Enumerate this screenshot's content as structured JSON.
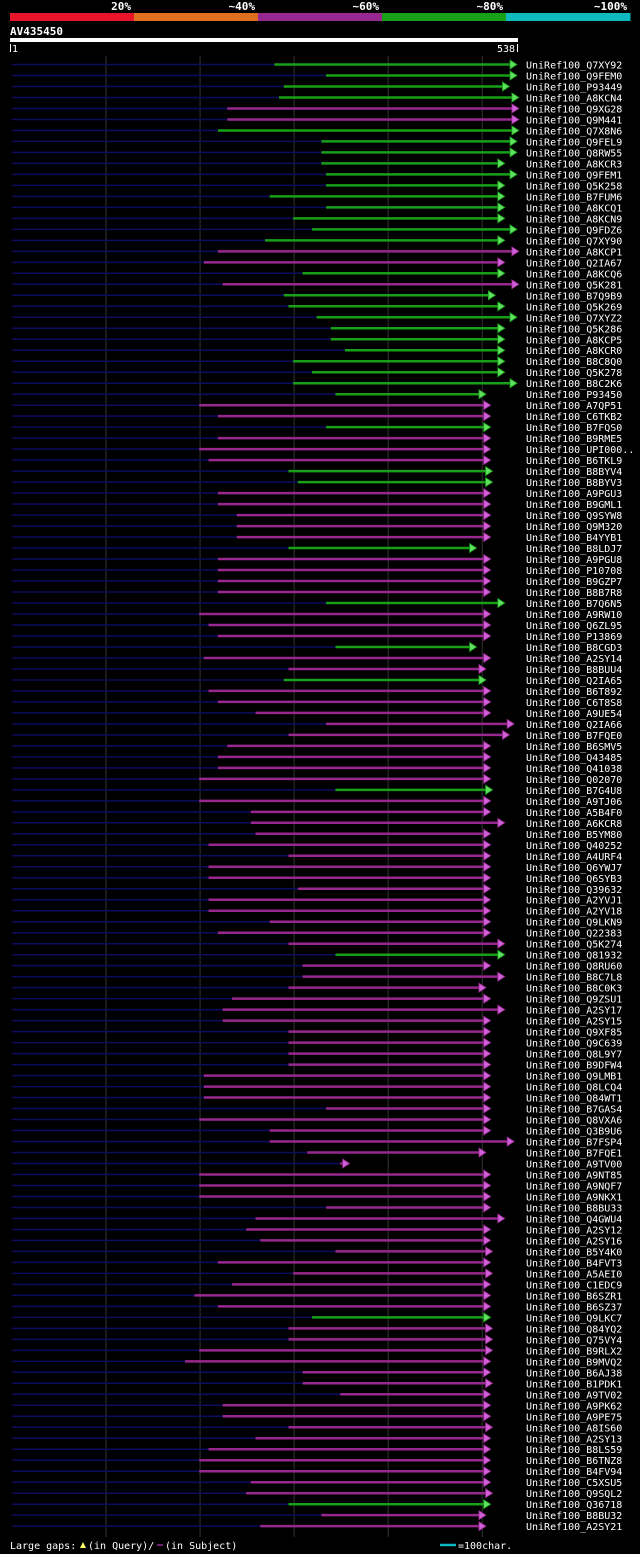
{
  "query": {
    "id": "AV435450",
    "start": "1",
    "end": "538",
    "length": 538
  },
  "identity_legend": [
    {
      "label": "20%",
      "color": "#e8142a"
    },
    {
      "label": "~40%",
      "color": "#e07020"
    },
    {
      "label": "~60%",
      "color": "#982890"
    },
    {
      "label": "~80%",
      "color": "#18a018"
    },
    {
      "label": "~100%",
      "color": "#10b8c0"
    }
  ],
  "colors": {
    "magenta": "#982890",
    "magenta_head": "#d060d8",
    "green": "#18a018",
    "green_head": "#60e060",
    "navy": "#0c0c60",
    "gridline": "#333333",
    "triangle": "#ffff66",
    "label": "#ffffff"
  },
  "footer": {
    "gaps_label": "Large gaps:",
    "query_label": "(in Query)/",
    "subject_label": "(in Subject)",
    "scale_label": "=100char."
  },
  "hits": [
    {
      "id": "UniRef100_Q7XY92",
      "start": 280,
      "end": 538,
      "color": "green"
    },
    {
      "id": "UniRef100_Q9FEM0",
      "start": 335,
      "end": 538,
      "color": "green"
    },
    {
      "id": "UniRef100_P93449",
      "start": 290,
      "end": 530,
      "color": "green"
    },
    {
      "id": "UniRef100_A8KCN4",
      "start": 285,
      "end": 540,
      "color": "green"
    },
    {
      "id": "UniRef100_Q9XG28",
      "start": 230,
      "end": 540,
      "color": "magenta"
    },
    {
      "id": "UniRef100_Q9M441",
      "start": 230,
      "end": 540,
      "color": "magenta"
    },
    {
      "id": "UniRef100_Q7X8N6",
      "start": 220,
      "end": 540,
      "color": "green"
    },
    {
      "id": "UniRef100_Q9FEL9",
      "start": 330,
      "end": 538,
      "color": "green"
    },
    {
      "id": "UniRef100_Q8RW55",
      "start": 330,
      "end": 538,
      "color": "green"
    },
    {
      "id": "UniRef100_A8KCR3",
      "start": 330,
      "end": 525,
      "color": "green"
    },
    {
      "id": "UniRef100_Q9FEM1",
      "start": 335,
      "end": 538,
      "color": "green"
    },
    {
      "id": "UniRef100_Q5K258",
      "start": 335,
      "end": 525,
      "color": "green"
    },
    {
      "id": "UniRef100_B7FUM6",
      "start": 275,
      "end": 525,
      "color": "green"
    },
    {
      "id": "UniRef100_A8KCQ1",
      "start": 335,
      "end": 525,
      "color": "green"
    },
    {
      "id": "UniRef100_A8KCN9",
      "start": 300,
      "end": 525,
      "color": "green"
    },
    {
      "id": "UniRef100_Q9FDZ6",
      "start": 320,
      "end": 538,
      "color": "green"
    },
    {
      "id": "UniRef100_Q7XY90",
      "start": 270,
      "end": 525,
      "color": "green"
    },
    {
      "id": "UniRef100_A8KCP1",
      "start": 220,
      "end": 540,
      "color": "magenta"
    },
    {
      "id": "UniRef100_Q2IA67",
      "start": 205,
      "end": 525,
      "color": "magenta"
    },
    {
      "id": "UniRef100_A8KCQ6",
      "start": 310,
      "end": 525,
      "color": "green"
    },
    {
      "id": "UniRef100_Q5K281",
      "start": 225,
      "end": 540,
      "color": "magenta"
    },
    {
      "id": "UniRef100_B7Q9B9",
      "start": 290,
      "end": 515,
      "color": "green"
    },
    {
      "id": "UniRef100_Q5K269",
      "start": 295,
      "end": 525,
      "color": "green"
    },
    {
      "id": "UniRef100_Q7XYZ2",
      "start": 325,
      "end": 538,
      "color": "green"
    },
    {
      "id": "UniRef100_Q5K286",
      "start": 340,
      "end": 525,
      "color": "green"
    },
    {
      "id": "UniRef100_A8KCP5",
      "start": 340,
      "end": 525,
      "color": "green"
    },
    {
      "id": "UniRef100_A8KCR0",
      "start": 355,
      "end": 525,
      "color": "green"
    },
    {
      "id": "UniRef100_B8C8Q0",
      "start": 300,
      "end": 525,
      "color": "green"
    },
    {
      "id": "UniRef100_Q5K278",
      "start": 320,
      "end": 525,
      "color": "green"
    },
    {
      "id": "UniRef100_B8C2K6",
      "start": 300,
      "end": 538,
      "color": "green"
    },
    {
      "id": "UniRef100_P93450",
      "start": 345,
      "end": 505,
      "color": "green"
    },
    {
      "id": "UniRef100_A7QP51",
      "start": 200,
      "end": 510,
      "color": "magenta"
    },
    {
      "id": "UniRef100_C6TKB2",
      "start": 220,
      "end": 510,
      "color": "magenta"
    },
    {
      "id": "UniRef100_B7FQS0",
      "start": 335,
      "end": 510,
      "color": "green"
    },
    {
      "id": "UniRef100_B9RME5",
      "start": 220,
      "end": 510,
      "color": "magenta"
    },
    {
      "id": "UniRef100_UPI000..",
      "start": 200,
      "end": 510,
      "color": "magenta"
    },
    {
      "id": "UniRef100_B6TKL9",
      "start": 210,
      "end": 510,
      "color": "magenta"
    },
    {
      "id": "UniRef100_B8BYV4",
      "start": 295,
      "end": 512,
      "color": "green"
    },
    {
      "id": "UniRef100_B8BYV3",
      "start": 305,
      "end": 512,
      "color": "green"
    },
    {
      "id": "UniRef100_A9PGU3",
      "start": 220,
      "end": 510,
      "color": "magenta"
    },
    {
      "id": "UniRef100_B9GML1",
      "start": 220,
      "end": 510,
      "color": "magenta"
    },
    {
      "id": "UniRef100_Q9SYW8",
      "start": 240,
      "end": 510,
      "color": "magenta"
    },
    {
      "id": "UniRef100_Q9M320",
      "start": 240,
      "end": 510,
      "color": "magenta"
    },
    {
      "id": "UniRef100_B4YYB1",
      "start": 240,
      "end": 510,
      "color": "magenta"
    },
    {
      "id": "UniRef100_B8LDJ7",
      "start": 295,
      "end": 495,
      "color": "green"
    },
    {
      "id": "UniRef100_A9PGU8",
      "start": 220,
      "end": 510,
      "color": "magenta"
    },
    {
      "id": "UniRef100_P10708",
      "start": 220,
      "end": 510,
      "color": "magenta"
    },
    {
      "id": "UniRef100_B9GZP7",
      "start": 220,
      "end": 510,
      "color": "magenta"
    },
    {
      "id": "UniRef100_B8B7R8",
      "start": 220,
      "end": 510,
      "color": "magenta"
    },
    {
      "id": "UniRef100_B7Q6N5",
      "start": 335,
      "end": 525,
      "color": "green"
    },
    {
      "id": "UniRef100_A9RW10",
      "start": 200,
      "end": 510,
      "color": "magenta"
    },
    {
      "id": "UniRef100_Q6ZL95",
      "start": 210,
      "end": 510,
      "color": "magenta"
    },
    {
      "id": "UniRef100_P13869",
      "start": 220,
      "end": 510,
      "color": "magenta"
    },
    {
      "id": "UniRef100_B8CGD3",
      "start": 345,
      "end": 495,
      "color": "green"
    },
    {
      "id": "UniRef100_A2SY14",
      "start": 205,
      "end": 510,
      "color": "magenta"
    },
    {
      "id": "UniRef100_B8BUU4",
      "start": 295,
      "end": 505,
      "color": "magenta"
    },
    {
      "id": "UniRef100_Q2IA65",
      "start": 290,
      "end": 505,
      "color": "green"
    },
    {
      "id": "UniRef100_B6T892",
      "start": 210,
      "end": 510,
      "color": "magenta"
    },
    {
      "id": "UniRef100_C6T8S8",
      "start": 220,
      "end": 510,
      "color": "magenta"
    },
    {
      "id": "UniRef100_A9UE54",
      "start": 260,
      "end": 510,
      "color": "magenta"
    },
    {
      "id": "UniRef100_Q2IA66",
      "start": 335,
      "end": 535,
      "color": "magenta"
    },
    {
      "id": "UniRef100_B7FQE0",
      "start": 295,
      "end": 530,
      "color": "magenta"
    },
    {
      "id": "UniRef100_B6SMV5",
      "start": 230,
      "end": 510,
      "color": "magenta"
    },
    {
      "id": "UniRef100_Q43485",
      "start": 220,
      "end": 510,
      "color": "magenta"
    },
    {
      "id": "UniRef100_Q41038",
      "start": 220,
      "end": 510,
      "color": "magenta"
    },
    {
      "id": "UniRef100_Q02070",
      "start": 200,
      "end": 510,
      "color": "magenta"
    },
    {
      "id": "UniRef100_B7G4U8",
      "start": 345,
      "end": 512,
      "color": "green"
    },
    {
      "id": "UniRef100_A9TJ06",
      "start": 200,
      "end": 510,
      "color": "magenta"
    },
    {
      "id": "UniRef100_A5B4F0",
      "start": 255,
      "end": 510,
      "color": "magenta"
    },
    {
      "id": "UniRef100_A6KCR8",
      "start": 255,
      "end": 525,
      "color": "magenta"
    },
    {
      "id": "UniRef100_B5YM80",
      "start": 260,
      "end": 510,
      "color": "magenta"
    },
    {
      "id": "UniRef100_Q40252",
      "start": 210,
      "end": 510,
      "color": "magenta"
    },
    {
      "id": "UniRef100_A4URF4",
      "start": 295,
      "end": 510,
      "color": "magenta"
    },
    {
      "id": "UniRef100_Q6YWJ7",
      "start": 210,
      "end": 510,
      "color": "magenta"
    },
    {
      "id": "UniRef100_Q6SYB3",
      "start": 210,
      "end": 510,
      "color": "magenta"
    },
    {
      "id": "UniRef100_Q39632",
      "start": 305,
      "end": 510,
      "color": "magenta"
    },
    {
      "id": "UniRef100_A2YVJ1",
      "start": 210,
      "end": 510,
      "color": "magenta"
    },
    {
      "id": "UniRef100_A2YV18",
      "start": 210,
      "end": 510,
      "color": "magenta"
    },
    {
      "id": "UniRef100_Q9LKN9",
      "start": 275,
      "end": 510,
      "color": "magenta"
    },
    {
      "id": "UniRef100_Q22383",
      "start": 220,
      "end": 510,
      "color": "magenta"
    },
    {
      "id": "UniRef100_Q5K274",
      "start": 295,
      "end": 525,
      "color": "magenta"
    },
    {
      "id": "UniRef100_Q81932",
      "start": 345,
      "end": 525,
      "color": "green"
    },
    {
      "id": "UniRef100_Q8RU60",
      "start": 310,
      "end": 510,
      "color": "magenta"
    },
    {
      "id": "UniRef100_B8C7L8",
      "start": 310,
      "end": 525,
      "color": "magenta"
    },
    {
      "id": "UniRef100_B8C0K3",
      "start": 295,
      "end": 505,
      "color": "magenta"
    },
    {
      "id": "UniRef100_Q9ZSU1",
      "start": 235,
      "end": 510,
      "color": "magenta"
    },
    {
      "id": "UniRef100_A2SY17",
      "start": 225,
      "end": 525,
      "color": "magenta"
    },
    {
      "id": "UniRef100_A2SY15",
      "start": 225,
      "end": 510,
      "color": "magenta"
    },
    {
      "id": "UniRef100_Q9XF85",
      "start": 295,
      "end": 510,
      "color": "magenta"
    },
    {
      "id": "UniRef100_Q9C639",
      "start": 295,
      "end": 510,
      "color": "magenta"
    },
    {
      "id": "UniRef100_Q8L9Y7",
      "start": 295,
      "end": 510,
      "color": "magenta"
    },
    {
      "id": "UniRef100_B9DFW4",
      "start": 295,
      "end": 510,
      "color": "magenta"
    },
    {
      "id": "UniRef100_Q9LMB1",
      "start": 205,
      "end": 510,
      "color": "magenta"
    },
    {
      "id": "UniRef100_Q8LCQ4",
      "start": 205,
      "end": 510,
      "color": "magenta"
    },
    {
      "id": "UniRef100_Q84WT1",
      "start": 205,
      "end": 510,
      "color": "magenta"
    },
    {
      "id": "UniRef100_B7GAS4",
      "start": 335,
      "end": 510,
      "color": "magenta"
    },
    {
      "id": "UniRef100_Q8VXA6",
      "start": 200,
      "end": 510,
      "color": "magenta"
    },
    {
      "id": "UniRef100_Q3B9U6",
      "start": 275,
      "end": 510,
      "color": "magenta"
    },
    {
      "id": "UniRef100_B7FSP4",
      "start": 275,
      "end": 535,
      "color": "magenta"
    },
    {
      "id": "UniRef100_B7FQE1",
      "start": 315,
      "end": 505,
      "color": "magenta"
    },
    {
      "id": "UniRef100_A9TV00",
      "start": 350,
      "end": 360,
      "color": "magenta"
    },
    {
      "id": "UniRef100_A9NT85",
      "start": 200,
      "end": 510,
      "color": "magenta"
    },
    {
      "id": "UniRef100_A9NQF7",
      "start": 200,
      "end": 510,
      "color": "magenta"
    },
    {
      "id": "UniRef100_A9NKX1",
      "start": 200,
      "end": 510,
      "color": "magenta"
    },
    {
      "id": "UniRef100_B8BU33",
      "start": 335,
      "end": 510,
      "color": "magenta"
    },
    {
      "id": "UniRef100_Q4GWU4",
      "start": 260,
      "end": 525,
      "color": "magenta"
    },
    {
      "id": "UniRef100_A2SY12",
      "start": 250,
      "end": 510,
      "color": "magenta"
    },
    {
      "id": "UniRef100_A2SY16",
      "start": 265,
      "end": 510,
      "color": "magenta"
    },
    {
      "id": "UniRef100_B5Y4K0",
      "start": 345,
      "end": 512,
      "color": "magenta"
    },
    {
      "id": "UniRef100_B4FVT3",
      "start": 220,
      "end": 510,
      "color": "magenta"
    },
    {
      "id": "UniRef100_A5AEI0",
      "start": 300,
      "end": 512,
      "color": "magenta"
    },
    {
      "id": "UniRef100_C1EDC9",
      "start": 235,
      "end": 510,
      "color": "magenta"
    },
    {
      "id": "UniRef100_B6SZR1",
      "start": 195,
      "end": 510,
      "color": "magenta"
    },
    {
      "id": "UniRef100_B6SZ37",
      "start": 220,
      "end": 510,
      "color": "magenta"
    },
    {
      "id": "UniRef100_Q9LKC7",
      "start": 320,
      "end": 510,
      "color": "green"
    },
    {
      "id": "UniRef100_Q84YQ2",
      "start": 295,
      "end": 512,
      "color": "magenta"
    },
    {
      "id": "UniRef100_Q75VY4",
      "start": 295,
      "end": 512,
      "color": "magenta"
    },
    {
      "id": "UniRef100_B9RLX2",
      "start": 200,
      "end": 512,
      "color": "magenta"
    },
    {
      "id": "UniRef100_B9MVQ2",
      "start": 185,
      "end": 510,
      "color": "magenta"
    },
    {
      "id": "UniRef100_B6AJ38",
      "start": 310,
      "end": 510,
      "color": "magenta"
    },
    {
      "id": "UniRef100_B1PDK1",
      "start": 310,
      "end": 512,
      "color": "magenta"
    },
    {
      "id": "UniRef100_A9TV02",
      "start": 350,
      "end": 510,
      "color": "magenta"
    },
    {
      "id": "UniRef100_A9PK62",
      "start": 225,
      "end": 510,
      "color": "magenta"
    },
    {
      "id": "UniRef100_A9PE75",
      "start": 225,
      "end": 510,
      "color": "magenta"
    },
    {
      "id": "UniRef100_A8IS60",
      "start": 295,
      "end": 512,
      "color": "magenta"
    },
    {
      "id": "UniRef100_A2SY13",
      "start": 260,
      "end": 510,
      "color": "magenta"
    },
    {
      "id": "UniRef100_B8LS59",
      "start": 210,
      "end": 510,
      "color": "magenta"
    },
    {
      "id": "UniRef100_B6TNZ8",
      "start": 200,
      "end": 510,
      "color": "magenta"
    },
    {
      "id": "UniRef100_B4FV94",
      "start": 200,
      "end": 510,
      "color": "magenta"
    },
    {
      "id": "UniRef100_C5XSU5",
      "start": 255,
      "end": 510,
      "color": "magenta"
    },
    {
      "id": "UniRef100_Q9SQL2",
      "start": 250,
      "end": 512,
      "color": "magenta"
    },
    {
      "id": "UniRef100_Q36718",
      "start": 295,
      "end": 510,
      "color": "green"
    },
    {
      "id": "UniRef100_B8BU32",
      "start": 330,
      "end": 505,
      "color": "magenta"
    },
    {
      "id": "UniRef100_A2SY21",
      "start": 265,
      "end": 505,
      "color": "magenta"
    }
  ]
}
